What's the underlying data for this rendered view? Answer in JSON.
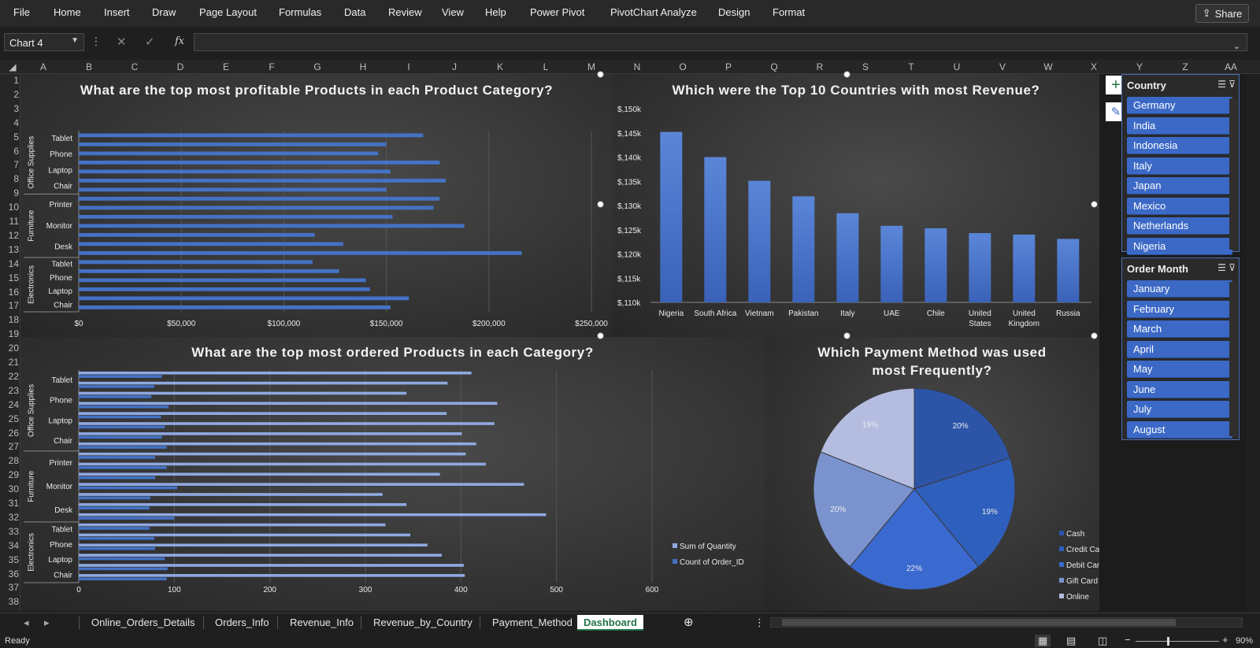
{
  "menu": [
    "File",
    "Home",
    "Insert",
    "Draw",
    "Page Layout",
    "Formulas",
    "Data",
    "Review",
    "View",
    "Help",
    "Power Pivot",
    "PivotChart Analyze",
    "Design",
    "Format"
  ],
  "share_label": "Share",
  "namebox": "Chart 4",
  "columns": [
    "A",
    "B",
    "C",
    "D",
    "E",
    "F",
    "G",
    "H",
    "I",
    "J",
    "K",
    "L",
    "M",
    "N",
    "O",
    "P",
    "Q",
    "R",
    "S",
    "T",
    "U",
    "V",
    "W",
    "X",
    "Y",
    "Z",
    "AA"
  ],
  "rows": [
    "1",
    "2",
    "3",
    "4",
    "5",
    "6",
    "7",
    "8",
    "9",
    "10",
    "11",
    "12",
    "13",
    "14",
    "15",
    "16",
    "17",
    "18",
    "19",
    "20",
    "21",
    "22",
    "23",
    "24",
    "25",
    "26",
    "27",
    "28",
    "29",
    "30",
    "31",
    "32",
    "33",
    "34",
    "35",
    "36",
    "37",
    "38"
  ],
  "chart_data": [
    {
      "type": "bar",
      "title": "What are the top most profitable Products in each Product Category?",
      "groups": [
        {
          "name": "Office Supplies",
          "labels": [
            "Tablet",
            "Phone",
            "Laptop",
            "Chair"
          ]
        },
        {
          "name": "Furniture",
          "labels": [
            "Printer",
            "Monitor",
            "Desk"
          ]
        },
        {
          "name": "Electronics",
          "labels": [
            "Tablet",
            "Phone",
            "Laptop",
            "Chair"
          ]
        }
      ],
      "values": [
        168000,
        150000,
        146000,
        176000,
        152000,
        179000,
        150000,
        176000,
        173000,
        153000,
        188000,
        115000,
        129000,
        216000,
        114000,
        127000,
        140000,
        142000,
        161000,
        152000
      ],
      "xticks": [
        "$0",
        "$50,000",
        "$100,000",
        "$150,000",
        "$200,000",
        "$250,000"
      ],
      "xlim": [
        0,
        250000
      ]
    },
    {
      "type": "bar",
      "title": "Which were the Top 10 Countries with most Revenue?",
      "categories": [
        "Nigeria",
        "South Africa",
        "Vietnam",
        "Pakistan",
        "Italy",
        "UAE",
        "Chile",
        "United States",
        "United Kingdom",
        "Russia"
      ],
      "values": [
        145200,
        140000,
        135100,
        131900,
        128400,
        125800,
        125300,
        124300,
        124000,
        123100
      ],
      "yticks": [
        "$,110k",
        "$,115k",
        "$,120k",
        "$,125k",
        "$,130k",
        "$,135k",
        "$,140k",
        "$,145k",
        "$,150k"
      ],
      "ylim": [
        110000,
        150000
      ]
    },
    {
      "type": "bar",
      "title": "What are the top most ordered Products in each Category?",
      "groups": [
        {
          "name": "Office Supplies",
          "labels": [
            "Tablet",
            "Phone",
            "Laptop",
            "Chair"
          ]
        },
        {
          "name": "Furniture",
          "labels": [
            "Printer",
            "Monitor",
            "Desk"
          ]
        },
        {
          "name": "Electronics",
          "labels": [
            "Tablet",
            "Phone",
            "Laptop",
            "Chair"
          ]
        }
      ],
      "series": [
        {
          "name": "Sum of Quantity",
          "values": [
            411,
            386,
            343,
            438,
            385,
            435,
            401,
            416,
            405,
            426,
            378,
            466,
            318,
            343,
            489,
            321,
            347,
            365,
            380,
            403,
            404
          ]
        },
        {
          "name": "Count of Order_ID",
          "values": [
            87,
            79,
            76,
            94,
            86,
            90,
            87,
            92,
            80,
            92,
            80,
            103,
            75,
            74,
            100,
            74,
            79,
            80,
            90,
            93,
            92
          ]
        }
      ],
      "xticks": [
        "0",
        "100",
        "200",
        "300",
        "400",
        "500",
        "600"
      ],
      "xlim": [
        0,
        600
      ],
      "legend": "right"
    },
    {
      "type": "pie",
      "title": "Which Payment Method was used most Frequently?",
      "categories": [
        "Cash",
        "Credit Card",
        "Debit Card",
        "Gift Card",
        "Online"
      ],
      "values": [
        20,
        19,
        22,
        20,
        19
      ],
      "labels": [
        "20%",
        "19%",
        "22%",
        "20%",
        "19%"
      ],
      "colors": [
        "#2c55a8",
        "#2f5fbd",
        "#3a6ad0",
        "#7a93cf",
        "#b4bde0"
      ],
      "legend": "right"
    }
  ],
  "slicers": {
    "country": {
      "title": "Country",
      "items": [
        "Germany",
        "India",
        "Indonesia",
        "Italy",
        "Japan",
        "Mexico",
        "Netherlands",
        "Nigeria"
      ]
    },
    "month": {
      "title": "Order Month",
      "items": [
        "January",
        "February",
        "March",
        "April",
        "May",
        "June",
        "July",
        "August"
      ]
    }
  },
  "sheets": [
    "Online_Orders_Details",
    "Orders_Info",
    "Revenue_Info",
    "Revenue_by_Country",
    "Payment_Method",
    "Dashboard"
  ],
  "active_sheet": "Dashboard",
  "status": "Ready",
  "zoom": "90%"
}
